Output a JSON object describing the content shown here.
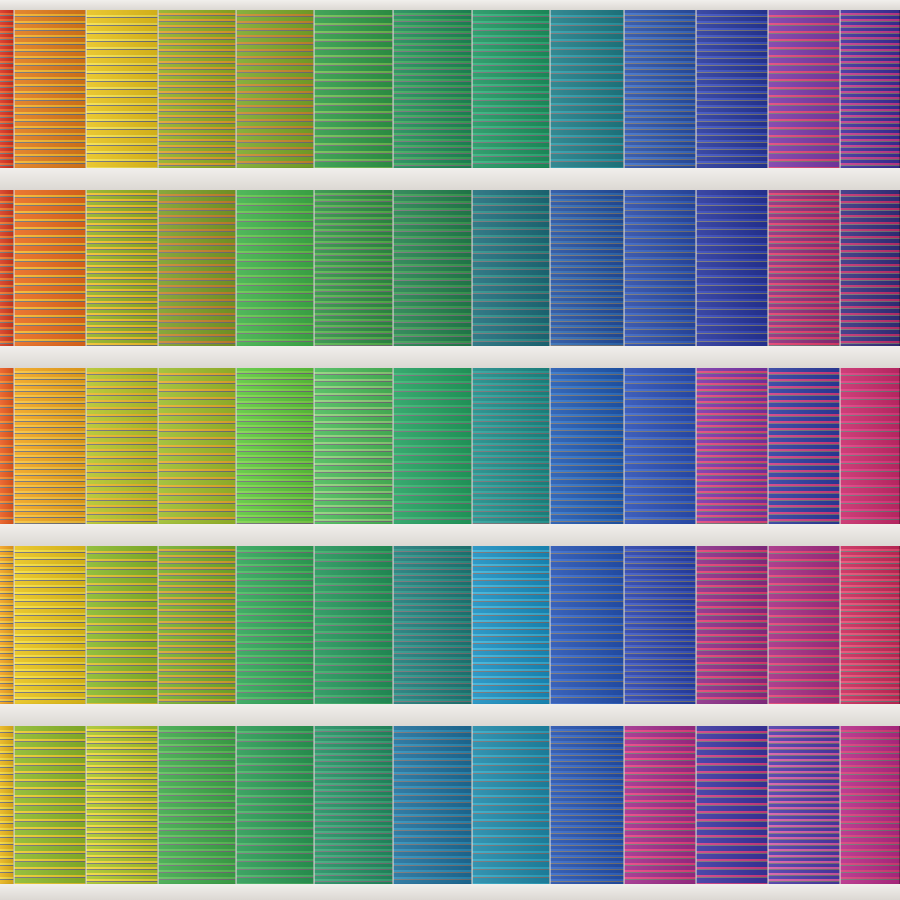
{
  "image": {
    "subject": "colourful-window-blinds-facade",
    "floors": [
      {
        "panels": [
          {
            "a": "#d8301e",
            "b": "#f0602a"
          },
          {
            "a": "#e07a1a",
            "b": "#f4b22a"
          },
          {
            "a": "#e8c21c",
            "b": "#f4e04a"
          },
          {
            "a": "#8fae24",
            "b": "#e0a22a"
          },
          {
            "a": "#7aa82a",
            "b": "#c98a2c"
          },
          {
            "a": "#2f9a48",
            "b": "#6ebf52"
          },
          {
            "a": "#1f8a58",
            "b": "#3aa85a"
          },
          {
            "a": "#1e9460",
            "b": "#2fb07a"
          },
          {
            "a": "#1f7c86",
            "b": "#2a9aa8"
          },
          {
            "a": "#2a4fa4",
            "b": "#3a6cc6"
          },
          {
            "a": "#27379a",
            "b": "#3a4fc0"
          },
          {
            "a": "#7a3aa8",
            "b": "#e0447a"
          },
          {
            "a": "#3b2f9a",
            "b": "#c23a8c"
          }
        ]
      },
      {
        "panels": [
          {
            "a": "#d63a1e",
            "b": "#f0742a"
          },
          {
            "a": "#e86a1c",
            "b": "#f6b42c"
          },
          {
            "a": "#92b024",
            "b": "#f0c02a"
          },
          {
            "a": "#7a9e28",
            "b": "#c8842c"
          },
          {
            "a": "#3fb04a",
            "b": "#62c64c"
          },
          {
            "a": "#2f8e46",
            "b": "#55b44c"
          },
          {
            "a": "#23804e",
            "b": "#3b9e54"
          },
          {
            "a": "#1e6c7a",
            "b": "#2a8e8a"
          },
          {
            "a": "#244e9e",
            "b": "#2e6ab4"
          },
          {
            "a": "#2a4aa6",
            "b": "#3460c0"
          },
          {
            "a": "#26349a",
            "b": "#3446b8"
          },
          {
            "a": "#8a2e7a",
            "b": "#e23c6c"
          },
          {
            "a": "#34307e",
            "b": "#c03070"
          }
        ]
      },
      {
        "panels": [
          {
            "a": "#ea5a1e",
            "b": "#f7862a"
          },
          {
            "a": "#f0a41c",
            "b": "#f8c23a"
          },
          {
            "a": "#b4c42a",
            "b": "#eab82a"
          },
          {
            "a": "#9cbc2c",
            "b": "#e6ae2c"
          },
          {
            "a": "#5cc83c",
            "b": "#7ed44a"
          },
          {
            "a": "#4aba5a",
            "b": "#8ed27a"
          },
          {
            "a": "#23a060",
            "b": "#36b470"
          },
          {
            "a": "#1d8a86",
            "b": "#2aa09a"
          },
          {
            "a": "#2058b0",
            "b": "#2e72c8"
          },
          {
            "a": "#2a4eb4",
            "b": "#3a66cc"
          },
          {
            "a": "#7a34a8",
            "b": "#e0447a"
          },
          {
            "a": "#2d3c9e",
            "b": "#d03c82"
          },
          {
            "a": "#c82a6a",
            "b": "#e03a80"
          }
        ]
      },
      {
        "panels": [
          {
            "a": "#f2a21e",
            "b": "#f8c83a"
          },
          {
            "a": "#e8c21a",
            "b": "#f6de3c"
          },
          {
            "a": "#88b82a",
            "b": "#e0c02c"
          },
          {
            "a": "#74ae2c",
            "b": "#d6a62c"
          },
          {
            "a": "#2fa458",
            "b": "#48bc60"
          },
          {
            "a": "#23945a",
            "b": "#38ac66"
          },
          {
            "a": "#1f7a78",
            "b": "#2a9488"
          },
          {
            "a": "#1a8ec0",
            "b": "#38b0d8"
          },
          {
            "a": "#2552b2",
            "b": "#3468cc"
          },
          {
            "a": "#2840a8",
            "b": "#3a56c2"
          },
          {
            "a": "#8a2c86",
            "b": "#e23c74"
          },
          {
            "a": "#a42c82",
            "b": "#e44074"
          },
          {
            "a": "#c82a5a",
            "b": "#e84a72"
          }
        ]
      },
      {
        "panels": [
          {
            "a": "#e8b41a",
            "b": "#f4d638"
          },
          {
            "a": "#8cb82a",
            "b": "#eacc2c"
          },
          {
            "a": "#a8c42a",
            "b": "#f0d83a"
          },
          {
            "a": "#3ea84a",
            "b": "#5ec05a"
          },
          {
            "a": "#2a9a54",
            "b": "#46b464"
          },
          {
            "a": "#238e62",
            "b": "#3aa878"
          },
          {
            "a": "#1e6e9a",
            "b": "#2a8cb8"
          },
          {
            "a": "#1f88a8",
            "b": "#2ea6c4"
          },
          {
            "a": "#2450ac",
            "b": "#3266c6"
          },
          {
            "a": "#a02c8a",
            "b": "#e64082"
          },
          {
            "a": "#3a34a0",
            "b": "#d03c84"
          },
          {
            "a": "#4b3aa8",
            "b": "#d45aa6"
          },
          {
            "a": "#b62a86",
            "b": "#d83c7a"
          }
        ]
      }
    ]
  }
}
